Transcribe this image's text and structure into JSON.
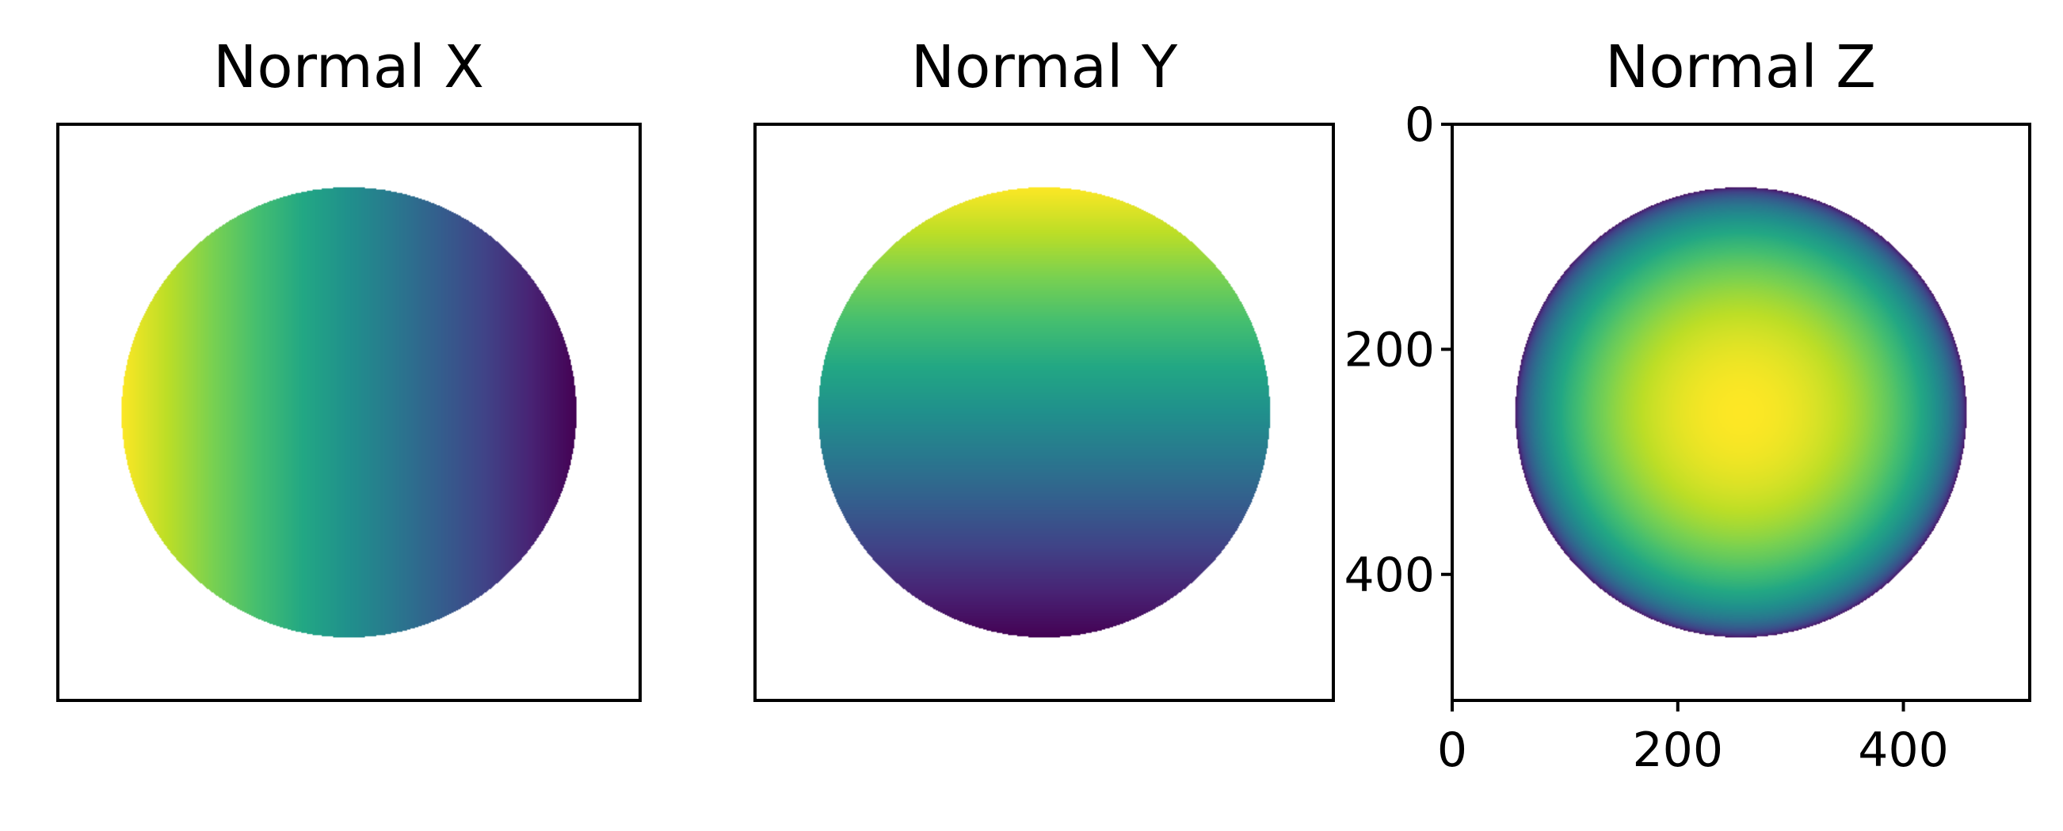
{
  "chart_data": [
    {
      "type": "heatmap",
      "title": "Normal X",
      "channel": "x",
      "colormap": "viridis",
      "image_size": 512,
      "sphere": {
        "center": [
          256,
          256
        ],
        "radius": 200
      },
      "show_axes": false
    },
    {
      "type": "heatmap",
      "title": "Normal Y",
      "channel": "y",
      "colormap": "viridis",
      "image_size": 512,
      "sphere": {
        "center": [
          256,
          256
        ],
        "radius": 200
      },
      "show_axes": false
    },
    {
      "type": "heatmap",
      "title": "Normal Z",
      "channel": "z",
      "colormap": "viridis",
      "image_size": 512,
      "sphere": {
        "center": [
          256,
          256
        ],
        "radius": 200
      },
      "show_axes": true,
      "xlim": [
        0,
        512
      ],
      "ylim": [
        512,
        0
      ],
      "xticks": [
        0,
        200,
        400
      ],
      "yticks": [
        0,
        200,
        400
      ],
      "xtick_labels": [
        "0",
        "200",
        "400"
      ],
      "ytick_labels": [
        "0",
        "200",
        "400"
      ]
    }
  ]
}
